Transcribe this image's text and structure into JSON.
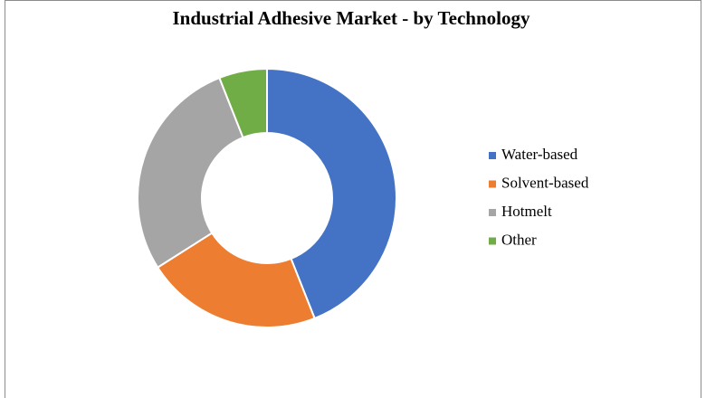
{
  "chart_data": {
    "type": "donut",
    "title": "Industrial Adhesive Market - by Technology",
    "categories": [
      "Water-based",
      "Solvent-based",
      "Hotmelt",
      "Other"
    ],
    "values": [
      44,
      22,
      28,
      6
    ],
    "colors": [
      "#4472c4",
      "#ed7d31",
      "#a5a5a5",
      "#70ad47"
    ],
    "legend": "right"
  }
}
